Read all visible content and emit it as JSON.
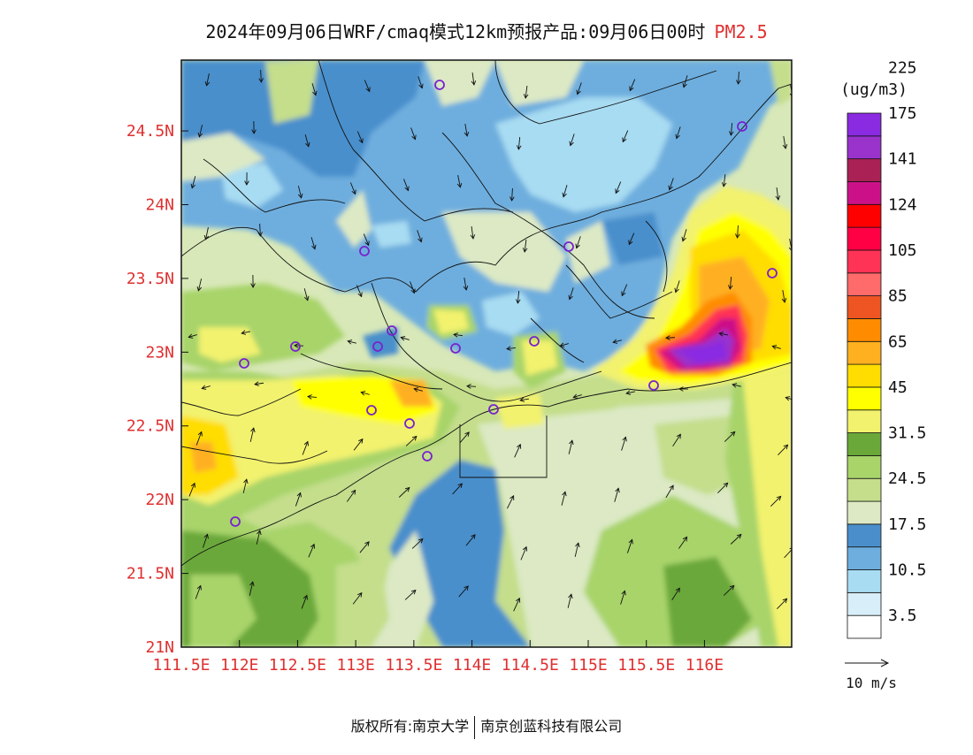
{
  "title": {
    "text": "2024年09月06日WRF/cmaq模式12km预报产品:09月06日00时",
    "species": "PM2.5"
  },
  "map": {
    "lon_ticks": [
      "111.5E",
      "112E",
      "112.5E",
      "113E",
      "113.5E",
      "114E",
      "114.5E",
      "115E",
      "115.5E",
      "116E"
    ],
    "lat_ticks": [
      "24.5N",
      "24N",
      "23.5N",
      "23N",
      "22.5N",
      "22N",
      "21.5N",
      "21N"
    ],
    "lon_range": [
      111.5,
      116.75
    ],
    "lat_range": [
      21.0,
      24.98
    ],
    "axis_color": "#e03030"
  },
  "colorbar": {
    "unit": "(ug/m3)",
    "colors": [
      "#ffffff",
      "#d8eef8",
      "#a8dcf2",
      "#6eaede",
      "#4a8fcc",
      "#dce9c4",
      "#c4de8c",
      "#a8d46a",
      "#6aa83a",
      "#f2f26e",
      "#ffff00",
      "#ffdd00",
      "#ffb020",
      "#ff8c00",
      "#ee5522",
      "#ff6a6a",
      "#ff3355",
      "#ff0044",
      "#ff0000",
      "#cc1188",
      "#aa2255",
      "#9933cc",
      "#8a2be2"
    ],
    "labels": [
      "3.5",
      "10.5",
      "17.5",
      "24.5",
      "31.5",
      "45",
      "65",
      "85",
      "105",
      "124",
      "141",
      "175",
      "225"
    ]
  },
  "wind_legend": {
    "label": "10 m/s"
  },
  "footer": {
    "left": "版权所有:南京大学",
    "right": "南京创蓝科技有限公司"
  }
}
